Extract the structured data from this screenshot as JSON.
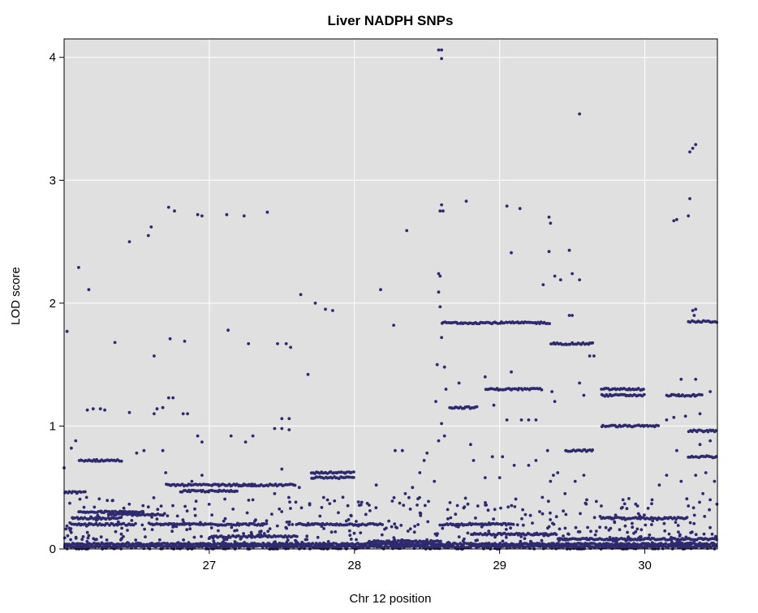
{
  "chart_data": {
    "type": "scatter",
    "title": "Liver NADPH SNPs",
    "xlabel": "Chr 12 position",
    "ylabel": "LOD score",
    "xlim": [
      26.0,
      30.5
    ],
    "ylim": [
      0,
      4.15
    ],
    "xticks": [
      27,
      28,
      29,
      30
    ],
    "yticks": [
      0,
      1,
      2,
      3,
      4
    ],
    "grid": true,
    "background": "#e0e0e0",
    "grid_color": "#ffffff",
    "point_color": "#2e2a6e",
    "bands": [
      {
        "x": [
          26.0,
          30.5
        ],
        "y": 0.02
      },
      {
        "x": [
          26.0,
          30.5
        ],
        "y": 0.04
      },
      {
        "x": [
          26.05,
          26.4
        ],
        "y": 0.25
      },
      {
        "x": [
          26.05,
          26.5
        ],
        "y": 0.2
      },
      {
        "x": [
          26.1,
          26.55
        ],
        "y": 0.3
      },
      {
        "x": [
          26.3,
          26.7
        ],
        "y": 0.28
      },
      {
        "x": [
          26.6,
          27.4
        ],
        "y": 0.2
      },
      {
        "x": [
          26.7,
          27.3
        ],
        "y": 0.52
      },
      {
        "x": [
          26.8,
          27.2
        ],
        "y": 0.47
      },
      {
        "x": [
          27.2,
          27.6
        ],
        "y": 0.52
      },
      {
        "x": [
          27.0,
          27.6
        ],
        "y": 0.1
      },
      {
        "x": [
          27.6,
          28.2
        ],
        "y": 0.2
      },
      {
        "x": [
          27.7,
          28.0
        ],
        "y": 0.62
      },
      {
        "x": [
          27.7,
          28.0
        ],
        "y": 0.58
      },
      {
        "x": [
          26.1,
          26.4
        ],
        "y": 0.72
      },
      {
        "x": [
          26.0,
          26.15
        ],
        "y": 0.46
      },
      {
        "x": [
          28.1,
          28.6
        ],
        "y": 0.06
      },
      {
        "x": [
          28.6,
          29.35
        ],
        "y": 1.84
      },
      {
        "x": [
          28.65,
          28.85
        ],
        "y": 1.15
      },
      {
        "x": [
          28.9,
          29.3
        ],
        "y": 1.3
      },
      {
        "x": [
          29.35,
          29.65
        ],
        "y": 1.67
      },
      {
        "x": [
          29.45,
          29.65
        ],
        "y": 0.8
      },
      {
        "x": [
          29.7,
          30.0
        ],
        "y": 1.3
      },
      {
        "x": [
          29.7,
          30.0
        ],
        "y": 1.25
      },
      {
        "x": [
          29.7,
          30.1
        ],
        "y": 1.0
      },
      {
        "x": [
          30.15,
          30.4
        ],
        "y": 1.25
      },
      {
        "x": [
          30.3,
          30.5
        ],
        "y": 1.85
      },
      {
        "x": [
          30.3,
          30.5
        ],
        "y": 0.96
      },
      {
        "x": [
          30.3,
          30.5
        ],
        "y": 0.75
      },
      {
        "x": [
          29.7,
          30.3
        ],
        "y": 0.25
      },
      {
        "x": [
          28.6,
          29.1
        ],
        "y": 0.2
      },
      {
        "x": [
          28.8,
          29.4
        ],
        "y": 0.12
      },
      {
        "x": [
          29.4,
          30.5
        ],
        "y": 0.08
      }
    ],
    "points": [
      [
        26.02,
        1.77
      ],
      [
        26.1,
        2.29
      ],
      [
        26.17,
        2.11
      ],
      [
        26.35,
        1.68
      ],
      [
        26.45,
        2.5
      ],
      [
        26.58,
        2.55
      ],
      [
        26.6,
        2.62
      ],
      [
        26.62,
        1.57
      ],
      [
        26.72,
        2.78
      ],
      [
        26.76,
        2.75
      ],
      [
        26.73,
        1.71
      ],
      [
        26.83,
        1.69
      ],
      [
        26.92,
        2.72
      ],
      [
        26.95,
        2.71
      ],
      [
        27.12,
        2.72
      ],
      [
        27.13,
        1.78
      ],
      [
        27.24,
        2.71
      ],
      [
        27.27,
        1.67
      ],
      [
        27.4,
        2.74
      ],
      [
        27.47,
        1.67
      ],
      [
        27.53,
        1.67
      ],
      [
        27.56,
        1.64
      ],
      [
        27.63,
        2.07
      ],
      [
        27.68,
        1.42
      ],
      [
        27.73,
        2.0
      ],
      [
        27.8,
        1.95
      ],
      [
        27.85,
        1.94
      ],
      [
        28.18,
        2.11
      ],
      [
        28.27,
        1.82
      ],
      [
        28.36,
        2.59
      ],
      [
        28.58,
        4.06
      ],
      [
        28.6,
        4.06
      ],
      [
        28.6,
        3.99
      ],
      [
        28.6,
        2.8
      ],
      [
        28.59,
        2.75
      ],
      [
        28.61,
        2.75
      ],
      [
        28.58,
        2.24
      ],
      [
        28.59,
        2.22
      ],
      [
        28.58,
        2.09
      ],
      [
        28.59,
        1.97
      ],
      [
        28.77,
        2.83
      ],
      [
        29.05,
        2.79
      ],
      [
        29.14,
        2.77
      ],
      [
        29.08,
        2.41
      ],
      [
        29.08,
        1.44
      ],
      [
        29.3,
        2.15
      ],
      [
        29.34,
        2.7
      ],
      [
        29.35,
        2.65
      ],
      [
        29.34,
        2.42
      ],
      [
        29.38,
        2.22
      ],
      [
        29.42,
        2.19
      ],
      [
        29.48,
        2.43
      ],
      [
        29.5,
        2.24
      ],
      [
        29.55,
        2.19
      ],
      [
        29.55,
        3.54
      ],
      [
        29.48,
        1.9
      ],
      [
        29.5,
        1.9
      ],
      [
        30.2,
        2.67
      ],
      [
        30.22,
        2.68
      ],
      [
        30.3,
        2.71
      ],
      [
        30.31,
        2.85
      ],
      [
        30.31,
        3.23
      ],
      [
        30.33,
        3.26
      ],
      [
        30.35,
        3.29
      ],
      [
        30.33,
        1.94
      ],
      [
        30.35,
        1.95
      ],
      [
        30.34,
        1.9
      ],
      [
        26.2,
        1.14
      ],
      [
        26.25,
        1.14
      ],
      [
        26.28,
        1.13
      ],
      [
        26.16,
        1.13
      ],
      [
        26.45,
        1.11
      ],
      [
        26.62,
        1.1
      ],
      [
        26.64,
        1.14
      ],
      [
        26.68,
        1.15
      ],
      [
        26.72,
        1.23
      ],
      [
        26.75,
        1.23
      ],
      [
        26.82,
        1.1
      ],
      [
        26.85,
        1.1
      ],
      [
        26.92,
        0.92
      ],
      [
        26.95,
        0.87
      ],
      [
        27.15,
        0.92
      ],
      [
        27.25,
        0.87
      ],
      [
        27.3,
        0.92
      ],
      [
        27.45,
        0.98
      ],
      [
        27.5,
        0.98
      ],
      [
        27.55,
        0.97
      ],
      [
        27.5,
        1.06
      ],
      [
        27.55,
        1.06
      ],
      [
        28.63,
        1.3
      ],
      [
        28.72,
        1.35
      ],
      [
        28.9,
        1.4
      ],
      [
        28.96,
        1.17
      ],
      [
        29.05,
        1.05
      ],
      [
        29.15,
        1.05
      ],
      [
        29.2,
        1.05
      ],
      [
        29.25,
        1.05
      ],
      [
        29.36,
        1.28
      ],
      [
        29.38,
        1.2
      ],
      [
        29.55,
        1.35
      ],
      [
        29.58,
        1.25
      ],
      [
        29.62,
        1.57
      ],
      [
        29.65,
        1.57
      ],
      [
        30.15,
        1.05
      ],
      [
        30.2,
        1.07
      ],
      [
        30.28,
        1.08
      ],
      [
        30.38,
        1.1
      ],
      [
        30.45,
        1.28
      ],
      [
        30.35,
        1.38
      ],
      [
        30.25,
        1.38
      ],
      [
        26.0,
        0.66
      ],
      [
        26.05,
        0.82
      ],
      [
        26.08,
        0.88
      ],
      [
        26.5,
        0.78
      ],
      [
        26.55,
        0.8
      ],
      [
        26.68,
        0.8
      ],
      [
        26.7,
        0.62
      ],
      [
        26.88,
        0.55
      ],
      [
        26.95,
        0.6
      ],
      [
        27.3,
        0.4
      ],
      [
        27.5,
        0.65
      ],
      [
        27.45,
        0.45
      ],
      [
        27.62,
        0.5
      ],
      [
        27.92,
        0.42
      ],
      [
        28.05,
        0.38
      ],
      [
        28.15,
        0.52
      ],
      [
        28.28,
        0.8
      ],
      [
        28.33,
        0.8
      ],
      [
        28.35,
        0.45
      ],
      [
        28.4,
        0.5
      ],
      [
        28.45,
        0.62
      ],
      [
        28.48,
        0.72
      ],
      [
        28.5,
        0.78
      ],
      [
        28.55,
        0.55
      ],
      [
        28.58,
        0.88
      ],
      [
        28.6,
        1.02
      ],
      [
        28.62,
        0.92
      ],
      [
        28.56,
        1.2
      ],
      [
        28.57,
        1.5
      ],
      [
        28.62,
        1.48
      ],
      [
        28.6,
        1.72
      ],
      [
        28.8,
        0.85
      ],
      [
        28.82,
        0.72
      ],
      [
        28.85,
        0.35
      ],
      [
        28.9,
        0.58
      ],
      [
        28.95,
        0.75
      ],
      [
        29.0,
        0.58
      ],
      [
        29.02,
        0.75
      ],
      [
        29.1,
        0.68
      ],
      [
        29.2,
        0.68
      ],
      [
        29.25,
        0.72
      ],
      [
        29.33,
        0.8
      ],
      [
        29.35,
        0.55
      ],
      [
        29.37,
        0.6
      ],
      [
        29.4,
        0.62
      ],
      [
        29.45,
        0.45
      ],
      [
        29.52,
        0.55
      ],
      [
        29.58,
        0.6
      ],
      [
        29.6,
        0.4
      ],
      [
        29.7,
        0.35
      ],
      [
        29.85,
        0.4
      ],
      [
        29.95,
        0.35
      ],
      [
        30.05,
        0.4
      ],
      [
        30.1,
        0.52
      ],
      [
        30.15,
        0.6
      ],
      [
        30.22,
        0.8
      ],
      [
        30.25,
        0.55
      ],
      [
        30.3,
        0.35
      ],
      [
        30.4,
        0.45
      ],
      [
        30.42,
        0.62
      ],
      [
        30.45,
        0.4
      ],
      [
        30.48,
        0.55
      ],
      [
        30.45,
        0.88
      ],
      [
        30.38,
        0.85
      ],
      [
        30.35,
        0.6
      ]
    ]
  }
}
